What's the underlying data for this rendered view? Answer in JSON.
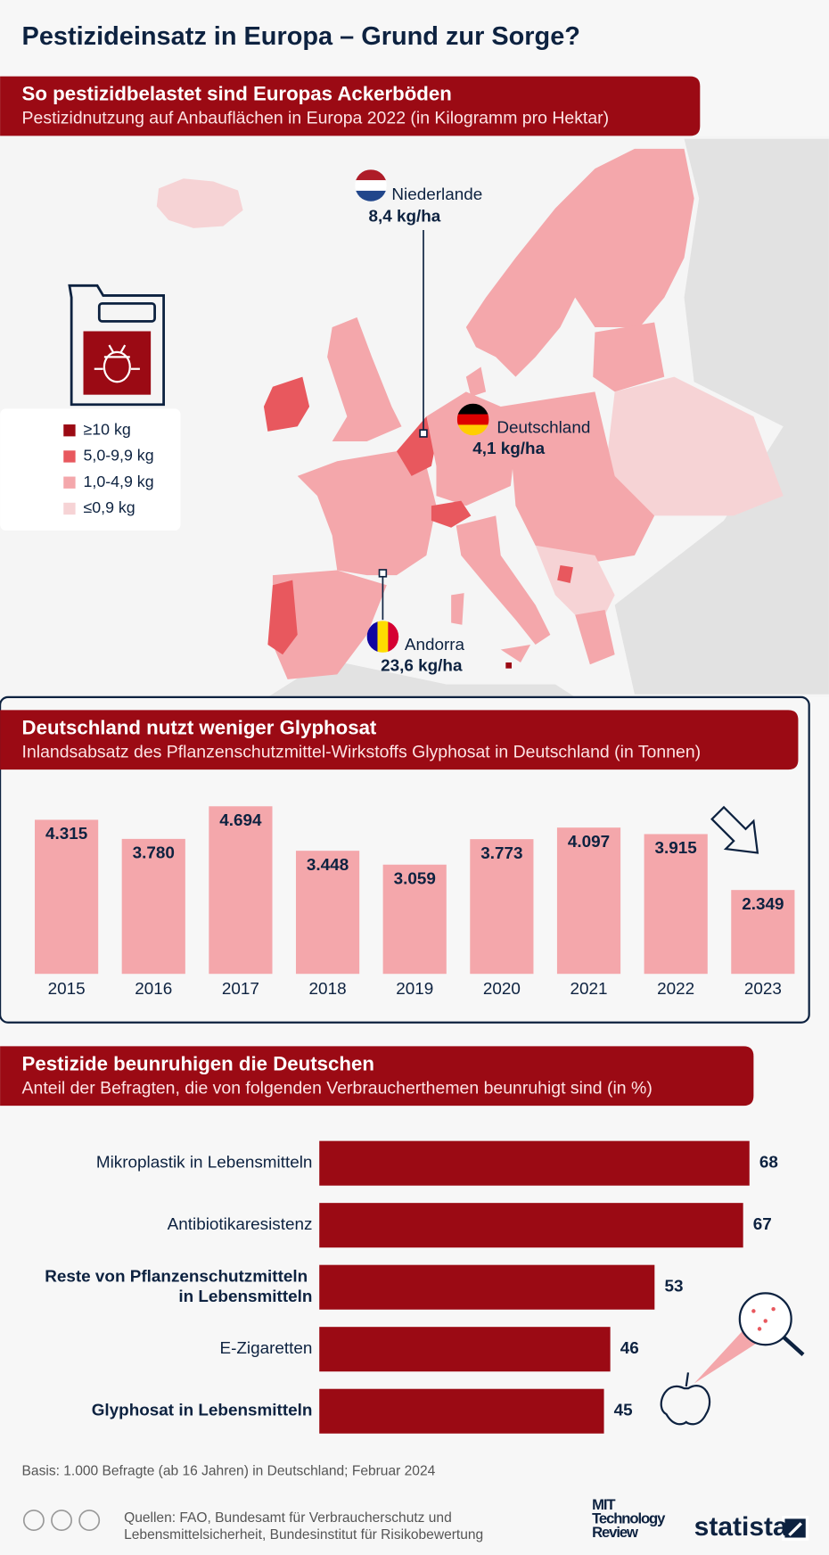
{
  "title": "Pestizideinsatz in Europa – Grund zur Sorge?",
  "chart_data": [
    {
      "type": "map",
      "title": "So pestizidbelastet sind Europas Ackerböden",
      "subtitle": "Pestizidnutzung auf Anbauflächen in Europa 2022 (in Kilogramm pro Hektar)",
      "legend": [
        {
          "label": "≥10 kg",
          "color": "#9b0a14"
        },
        {
          "label": "5,0-9,9 kg",
          "color": "#e8585e"
        },
        {
          "label": "1,0-4,9 kg",
          "color": "#f4a7ab"
        },
        {
          "label": "≤0,9 kg",
          "color": "#f6d3d5"
        }
      ],
      "regions": [
        "Niederlande",
        "Deutschland",
        "Andorra"
      ],
      "values": [
        8.4,
        4.1,
        23.6
      ],
      "value_labels": [
        "8,4 kg/ha",
        "4,1 kg/ha",
        "23,6 kg/ha"
      ]
    },
    {
      "type": "bar",
      "title": "Deutschland nutzt weniger Glyphosat",
      "subtitle": "Inlandsabsatz des Pflanzenschutzmittel-Wirkstoffs Glyphosat in Deutschland (in Tonnen)",
      "categories": [
        "2015",
        "2016",
        "2017",
        "2018",
        "2019",
        "2020",
        "2021",
        "2022",
        "2023"
      ],
      "values": [
        4315,
        3780,
        4694,
        3448,
        3059,
        3773,
        4097,
        3915,
        2349
      ],
      "value_labels": [
        "4.315",
        "3.780",
        "4.694",
        "3.448",
        "3.059",
        "3.773",
        "4.097",
        "3.915",
        "2.349"
      ],
      "color": "#f4a7ab"
    },
    {
      "type": "hbar",
      "title": "Pestizide beunruhigen die Deutschen",
      "subtitle": "Anteil der Befragten, die von folgenden Verbraucherthemen beunruhigt sind (in %)",
      "categories": [
        "Mikroplastik in Lebensmitteln",
        "Antibiotikaresistenz",
        "Reste von Pflanzenschutzmitteln in Lebensmitteln",
        "E-Zigaretten",
        "Glyphosat in Lebensmitteln"
      ],
      "values": [
        68,
        67,
        53,
        46,
        45
      ],
      "bold_categories": [
        false,
        false,
        true,
        false,
        true
      ],
      "color": "#9b0a14"
    }
  ],
  "footer": {
    "basis": "Basis: 1.000 Befragte (ab 16 Jahren) in Deutschland; Februar 2024",
    "sources": [
      "Quellen: FAO, Bundesamt für Verbraucherschutz und",
      "Lebensmittelsicherheit, Bundesinstitut für Risikobewertung"
    ],
    "mit_logo": [
      "MIT",
      "Technology",
      "Review"
    ],
    "brand": "statista"
  }
}
